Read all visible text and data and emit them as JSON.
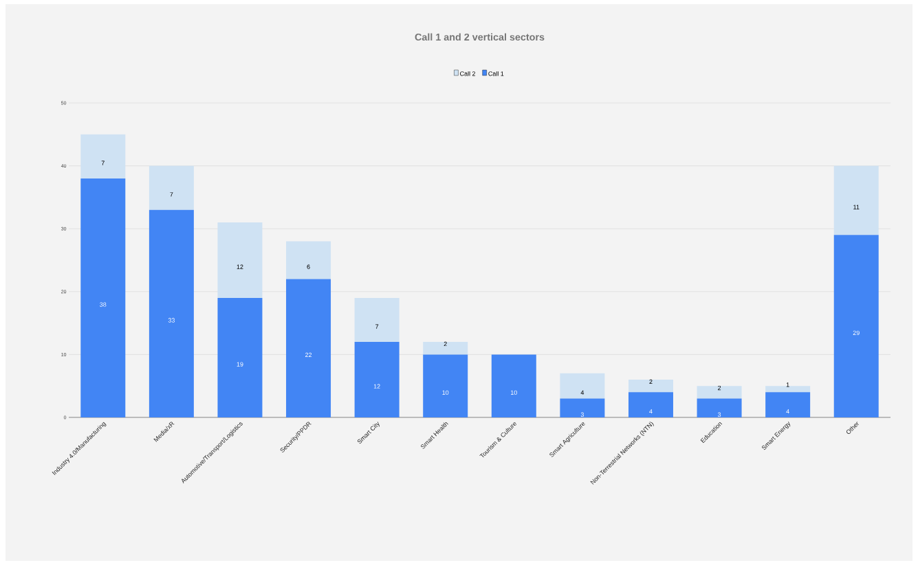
{
  "chart_data": {
    "type": "bar",
    "title": "Call 1 and 2 vertical sectors",
    "categories": [
      "Industry 4.0/Manufacturing",
      "Media/xR",
      "Automotive/Transport/Logistics",
      "Security/PPDR",
      "Smart City",
      "Smart Health",
      "Tourism & Culture",
      "Smart Agriculture",
      "Non-Terrestrial Networks (NTN)",
      "Education",
      "Smart Energy",
      "Other"
    ],
    "series": [
      {
        "name": "Call 1",
        "color": "#4285f4",
        "values": [
          38,
          33,
          19,
          22,
          12,
          10,
          10,
          3,
          4,
          3,
          4,
          29
        ]
      },
      {
        "name": "Call 2",
        "color": "#cfe2f3",
        "values": [
          7,
          7,
          12,
          6,
          7,
          2,
          null,
          4,
          2,
          2,
          1,
          11
        ]
      }
    ],
    "stacked": true,
    "data_labels": true,
    "ylim": [
      0,
      50
    ],
    "yticks": [
      0,
      10,
      20,
      30,
      40,
      50
    ],
    "grid": "y",
    "legend": "top"
  }
}
